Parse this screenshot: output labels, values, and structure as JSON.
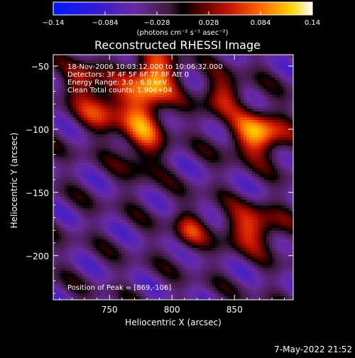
{
  "chart_data": {
    "type": "heatmap",
    "title": "Reconstructed RHESSI Image",
    "xlabel": "Heliocentric X (arcsec)",
    "ylabel": "Heliocentric Y (arcsec)",
    "xlim": [
      705,
      897
    ],
    "ylim": [
      -235,
      -41
    ],
    "x_ticks": [
      750,
      800,
      850
    ],
    "y_ticks": [
      -50,
      -100,
      -150,
      -200
    ],
    "x_tick_labels": [
      "750",
      "800",
      "850"
    ],
    "y_tick_labels": [
      "−50",
      "−100",
      "−150",
      "−200"
    ],
    "colorbar": {
      "range": [
        -0.14,
        0.14
      ],
      "ticks": [
        -0.14,
        -0.084,
        -0.028,
        0.028,
        0.084,
        0.14
      ],
      "tick_labels": [
        "−0.14",
        "−0.084",
        "−0.028",
        "0.028",
        "0.084",
        "0.14"
      ],
      "unit_label": "(photons cm⁻² s⁻¹ asec⁻²)"
    },
    "annotations": [
      "18-Nov-2006 10:03:12.000 to 10:06:32.000",
      "Detectors: 3F 4F 5F 6F 7F 8F  Att 0",
      "Energy Range: 3.0 - 6.0 keV",
      "Clean    Total counts: 1.90e+04"
    ],
    "peak_label": "Position of Peak = [869,-106]",
    "peak_position": [
      869,
      -106
    ],
    "sources": [
      {
        "x": 869,
        "y": -104,
        "amplitude": 0.14,
        "sx": 15,
        "sy": 12
      },
      {
        "x": 786,
        "y": -58,
        "amplitude": 0.12,
        "sx": 13,
        "sy": 15
      },
      {
        "x": 776,
        "y": -98,
        "amplitude": 0.1,
        "sx": 12,
        "sy": 24
      },
      {
        "x": 745,
        "y": -82,
        "amplitude": 0.09,
        "sx": 14,
        "sy": 14
      },
      {
        "x": 840,
        "y": -73,
        "amplitude": 0.08,
        "sx": 12,
        "sy": 11
      },
      {
        "x": 864,
        "y": -178,
        "amplitude": 0.1,
        "sx": 16,
        "sy": 12
      },
      {
        "x": 814,
        "y": -180,
        "amplitude": 0.07,
        "sx": 9,
        "sy": 11
      },
      {
        "x": 728,
        "y": -60,
        "amplitude": 0.07,
        "sx": 10,
        "sy": 10
      }
    ]
  },
  "footer": {
    "timestamp": "7-May-2022 21:52"
  }
}
